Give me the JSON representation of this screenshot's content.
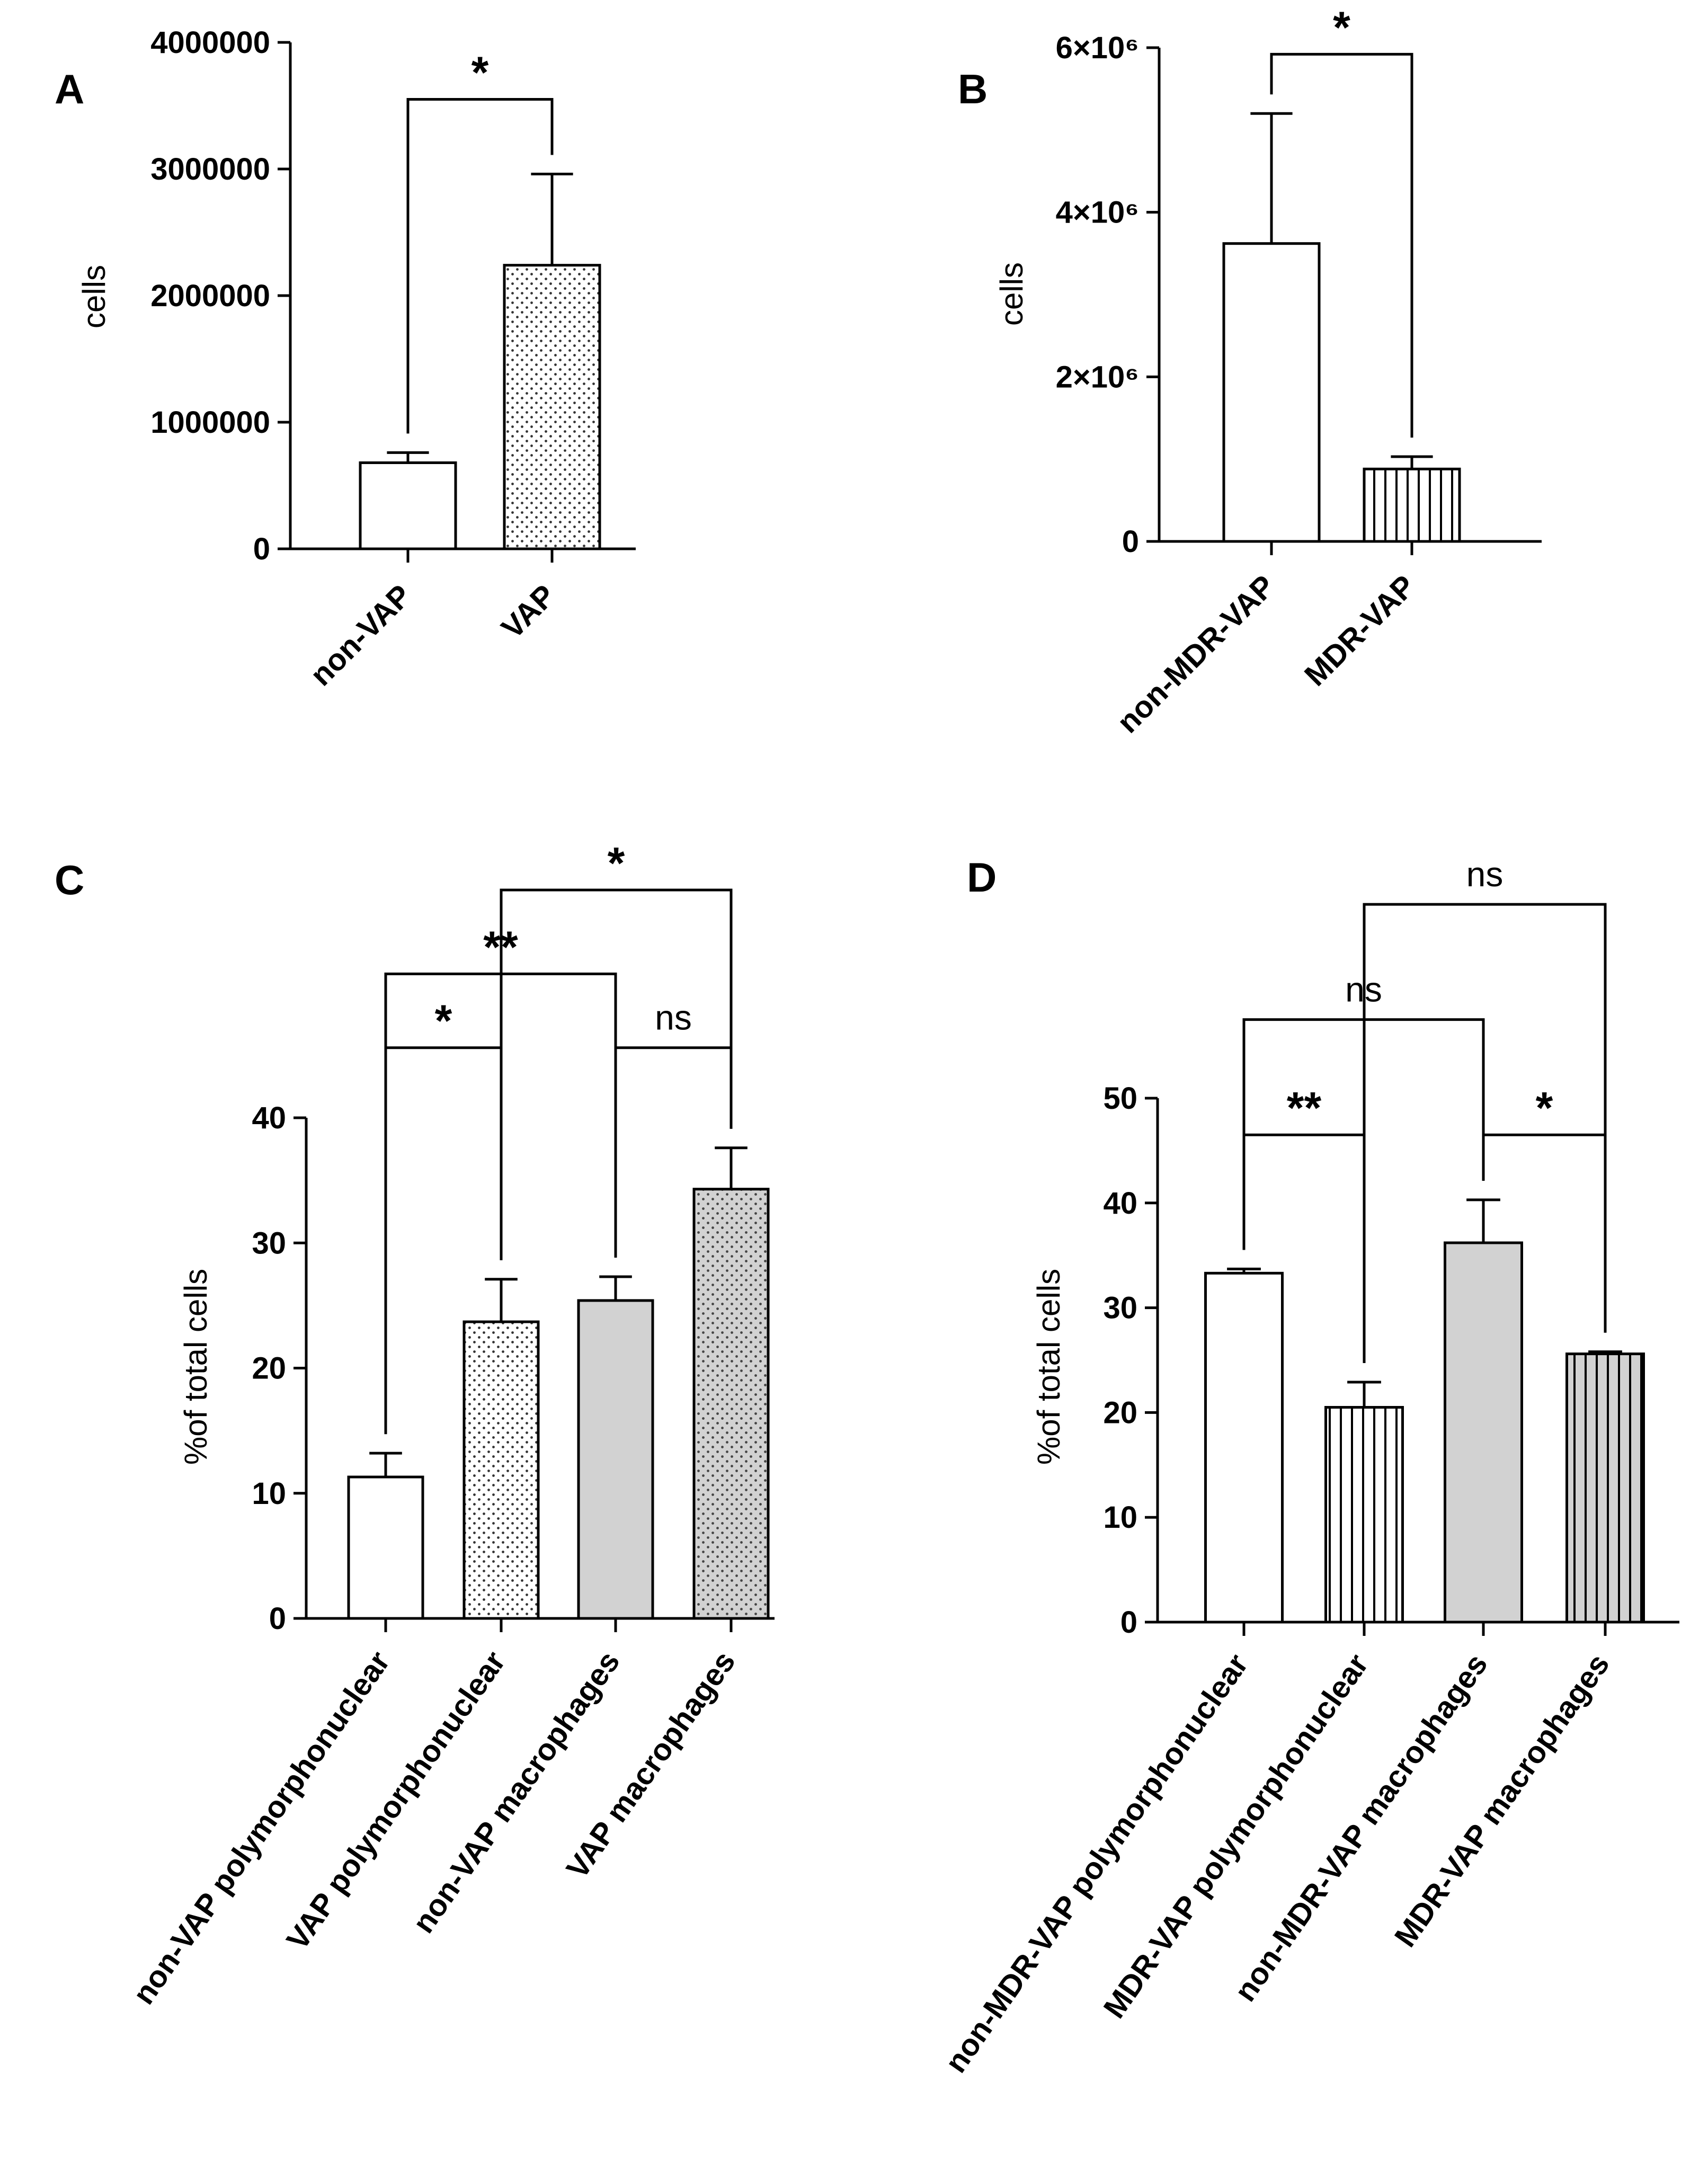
{
  "chart_data": [
    {
      "panel": "A",
      "type": "bar",
      "title": "",
      "xlabel": "",
      "ylabel": "cells",
      "ylim": [
        0,
        4000000
      ],
      "yticks": [
        {
          "value": 0,
          "label": "0"
        },
        {
          "value": 1000000,
          "label": "1000000"
        },
        {
          "value": 2000000,
          "label": "2000000"
        },
        {
          "value": 3000000,
          "label": "3000000"
        },
        {
          "value": 4000000,
          "label": "4000000"
        }
      ],
      "categories": [
        "non-VAP",
        "VAP"
      ],
      "values": [
        680000,
        2240000
      ],
      "errors": [
        80000,
        720000
      ],
      "patterns": [
        "white",
        "dots-white"
      ],
      "brackets": [
        {
          "from": 0,
          "to": 1,
          "label": "*",
          "level": 3550000
        }
      ]
    },
    {
      "panel": "B",
      "type": "bar",
      "title": "",
      "xlabel": "",
      "ylabel": "cells",
      "ylim": [
        0,
        6000000
      ],
      "yticks": [
        {
          "value": 0,
          "label": "0"
        },
        {
          "value": 2000000,
          "label": "2×10⁶"
        },
        {
          "value": 4000000,
          "label": "4×10⁶"
        },
        {
          "value": 6000000,
          "label": "6×10⁶"
        }
      ],
      "categories": [
        "non-MDR-VAP",
        "MDR-VAP"
      ],
      "values": [
        3620000,
        880000
      ],
      "errors": [
        1580000,
        150000
      ],
      "patterns": [
        "white",
        "vstripes-white"
      ],
      "brackets": [
        {
          "from": 0,
          "to": 1,
          "label": "*",
          "level": 5920000
        }
      ]
    },
    {
      "panel": "C",
      "type": "bar",
      "title": "",
      "xlabel": "",
      "ylabel": "%of total cells",
      "ylim": [
        0,
        40
      ],
      "yticks": [
        {
          "value": 0,
          "label": "0"
        },
        {
          "value": 10,
          "label": "10"
        },
        {
          "value": 20,
          "label": "20"
        },
        {
          "value": 30,
          "label": "30"
        },
        {
          "value": 40,
          "label": "40"
        }
      ],
      "categories": [
        "non-VAP polymorphonuclear",
        "VAP polymorphonuclear",
        "non-VAP macrophages",
        "VAP macrophages"
      ],
      "values": [
        11.3,
        23.7,
        25.4,
        34.3
      ],
      "errors": [
        1.9,
        3.4,
        1.9,
        3.3
      ],
      "patterns": [
        "white",
        "dots-white",
        "gray",
        "dots-gray"
      ],
      "brackets": [
        {
          "from": 0,
          "to": 1,
          "label": "*",
          "level": 45.6
        },
        {
          "from": 2,
          "to": 3,
          "label": "ns",
          "level": 45.6
        },
        {
          "from": 0,
          "to": 2,
          "label": "**",
          "level": 51.5
        },
        {
          "from": 1,
          "to": 3,
          "label": "*",
          "level": 58.2
        }
      ]
    },
    {
      "panel": "D",
      "type": "bar",
      "title": "",
      "xlabel": "",
      "ylabel": "%of total cells",
      "ylim": [
        0,
        50
      ],
      "yticks": [
        {
          "value": 0,
          "label": "0"
        },
        {
          "value": 10,
          "label": "10"
        },
        {
          "value": 20,
          "label": "20"
        },
        {
          "value": 30,
          "label": "30"
        },
        {
          "value": 40,
          "label": "40"
        },
        {
          "value": 50,
          "label": "50"
        }
      ],
      "categories": [
        "non-MDR-VAP polymorphonuclear",
        "MDR-VAP polymorphonuclear",
        "non-MDR-VAP macrophages",
        "MDR-VAP macrophages"
      ],
      "values": [
        33.3,
        20.5,
        36.2,
        25.6
      ],
      "errors": [
        0.4,
        2.4,
        4.1,
        0.2
      ],
      "patterns": [
        "white",
        "vstripes-white",
        "gray",
        "vstripes-gray"
      ],
      "brackets": [
        {
          "from": 0,
          "to": 1,
          "label": "**",
          "level": 46.5
        },
        {
          "from": 2,
          "to": 3,
          "label": "*",
          "level": 46.5
        },
        {
          "from": 0,
          "to": 2,
          "label": "ns",
          "level": 57.5
        },
        {
          "from": 1,
          "to": 3,
          "label": "ns",
          "level": 68.5
        }
      ]
    }
  ]
}
